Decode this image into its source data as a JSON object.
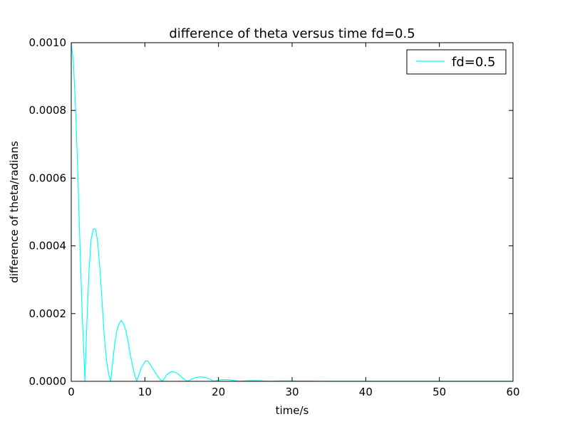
{
  "chart_data": {
    "type": "line",
    "title": "difference of theta versus time  fd=0.5",
    "xlabel": "time/s",
    "ylabel": "difference of theta/radians",
    "xlim": [
      0,
      60
    ],
    "ylim": [
      0,
      0.001
    ],
    "x_ticks": [
      "0",
      "10",
      "20",
      "30",
      "40",
      "50",
      "60"
    ],
    "y_ticks": [
      "0.0000",
      "0.0002",
      "0.0004",
      "0.0006",
      "0.0008",
      "0.0010"
    ],
    "grid": false,
    "legend_position": "top-right",
    "series": [
      {
        "name": "fd=0.5",
        "color": "#00ffff",
        "x": [
          0.0,
          0.3,
          0.6,
          0.9,
          1.2,
          1.5,
          1.8,
          1.85,
          2.1,
          2.4,
          2.7,
          3.0,
          3.3,
          3.6,
          3.9,
          4.2,
          4.5,
          4.8,
          5.1,
          5.35,
          5.6,
          5.9,
          6.2,
          6.5,
          6.8,
          7.1,
          7.4,
          7.7,
          8.0,
          8.3,
          8.6,
          8.9,
          9.2,
          9.5,
          9.8,
          10.1,
          10.4,
          10.7,
          11.0,
          11.3,
          11.6,
          11.9,
          12.35,
          12.7,
          13.0,
          13.3,
          13.6,
          13.9,
          14.2,
          14.5,
          14.8,
          15.1,
          15.4,
          15.85,
          16.3,
          16.8,
          17.3,
          17.8,
          18.3,
          18.8,
          19.35,
          19.9,
          20.5,
          21.1,
          21.7,
          22.2,
          22.8,
          23.4,
          24.0,
          25.0,
          26.0,
          27.0,
          28.0,
          30.0,
          35.0,
          40.0,
          50.0,
          60.0
        ],
        "y": [
          0.001,
          0.00094,
          0.0008,
          0.00061,
          0.00039,
          0.00019,
          4e-05,
          0.0,
          0.00016,
          0.00032,
          0.00042,
          0.00045,
          0.00045,
          0.00041,
          0.00033,
          0.00023,
          0.00013,
          6e-05,
          2e-05,
          0.0,
          5e-05,
          0.00011,
          0.00015,
          0.00017,
          0.00018,
          0.00017,
          0.00015,
          0.00012,
          8e-05,
          5e-05,
          2e-05,
          0.0,
          2e-05,
          4e-05,
          5e-05,
          6e-05,
          6e-05,
          5e-05,
          4e-05,
          3e-05,
          2e-05,
          1e-05,
          0.0,
          1e-05,
          2e-05,
          2.5e-05,
          2.8e-05,
          2.8e-05,
          2.6e-05,
          2.2e-05,
          1.6e-05,
          1e-05,
          5e-06,
          0.0,
          6e-06,
          1e-05,
          1.3e-05,
          1.3e-05,
          1.1e-05,
          7e-06,
          0.0,
          3e-06,
          5e-06,
          5e-06,
          4e-06,
          2e-06,
          0.0,
          1e-06,
          2e-06,
          2e-06,
          1e-06,
          0.0,
          1e-06,
          1e-06,
          0.0,
          0.0,
          0.0,
          0.0
        ]
      }
    ]
  }
}
